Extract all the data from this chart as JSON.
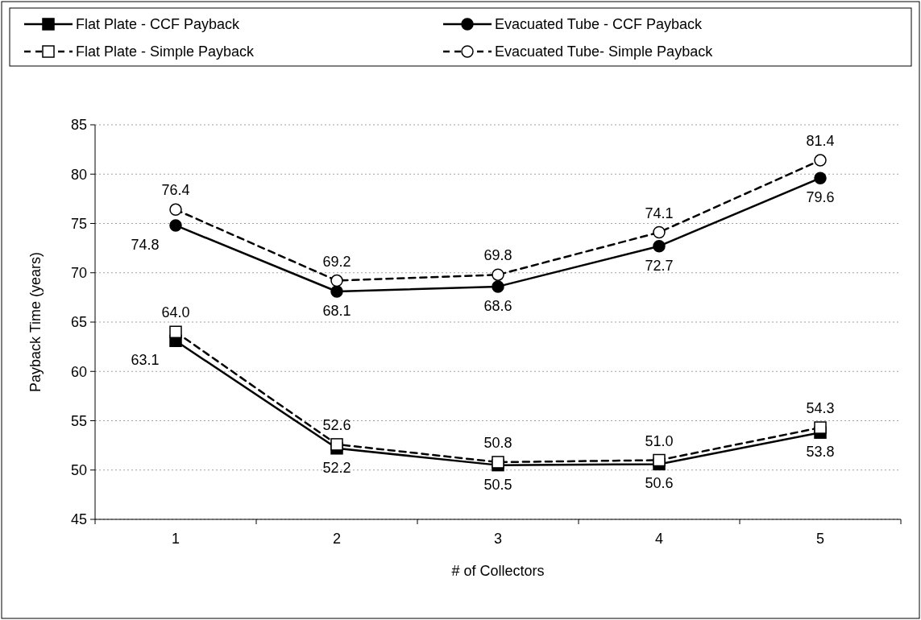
{
  "chart_data": {
    "type": "line",
    "categories": [
      "1",
      "2",
      "3",
      "4",
      "5"
    ],
    "xlabel": "# of Collectors",
    "ylabel": "Payback Time (years)",
    "ylim": [
      45,
      85
    ],
    "yticks": [
      45,
      50,
      55,
      60,
      65,
      70,
      75,
      80,
      85
    ],
    "grid": "y",
    "legend": "top",
    "series": [
      {
        "name": "Flat Plate - CCF Payback",
        "color": "#000000",
        "marker": "square",
        "line_style": "solid",
        "values": [
          63.1,
          52.2,
          50.5,
          50.6,
          53.8
        ],
        "value_labels": [
          "63.1",
          "52.2",
          "50.5",
          "50.6",
          "53.8"
        ]
      },
      {
        "name": "Evacuated Tube - CCF Payback",
        "color": "#000000",
        "marker": "circle",
        "line_style": "solid",
        "values": [
          74.8,
          68.1,
          68.6,
          72.7,
          79.6
        ],
        "value_labels": [
          "74.8",
          "68.1",
          "68.6",
          "72.7",
          "79.6"
        ]
      },
      {
        "name": "Flat Plate - Simple Payback",
        "color": "#000000",
        "marker": "square",
        "line_style": "dashed",
        "values": [
          64.0,
          52.6,
          50.8,
          51.0,
          54.3
        ],
        "value_labels": [
          "64.0",
          "52.6",
          "50.8",
          "51.0",
          "54.3"
        ]
      },
      {
        "name": "Evacuated Tube- Simple Payback",
        "color": "#000000",
        "marker": "circle",
        "line_style": "dashed",
        "values": [
          76.4,
          69.2,
          69.8,
          74.1,
          81.4
        ],
        "value_labels": [
          "76.4",
          "69.2",
          "69.8",
          "74.1",
          "81.4"
        ]
      }
    ]
  }
}
